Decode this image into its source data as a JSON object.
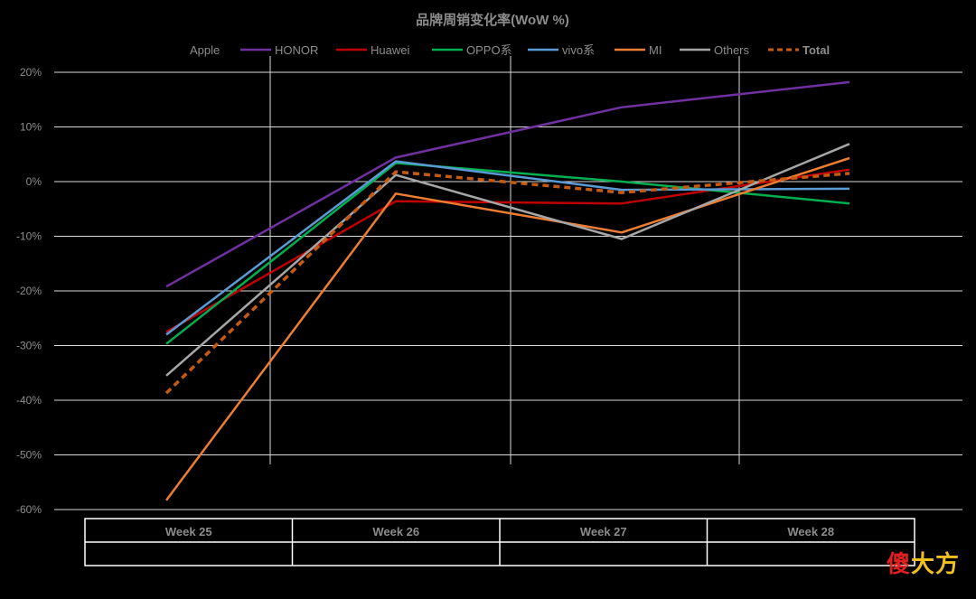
{
  "chart_data": {
    "type": "line",
    "title": "品牌周销变化率(WoW %)",
    "categories": [
      "Week 25",
      "Week 26",
      "Week 27",
      "Week 28"
    ],
    "y_unit": "%",
    "ylim": [
      -60,
      20
    ],
    "yticks": [
      20,
      10,
      0,
      -10,
      -20,
      -30,
      -40,
      -50,
      -60
    ],
    "ytick_labels": [
      "20%",
      "10%",
      "0%",
      "-10%",
      "-20%",
      "-30%",
      "-40%",
      "-50%",
      "-60%"
    ],
    "grid": true,
    "legend_position": "top",
    "series": [
      {
        "name": "Apple",
        "values": [
          null,
          null,
          null,
          null
        ],
        "color": "#000000",
        "dashed": false
      },
      {
        "name": "HONOR",
        "values": [
          -19.2,
          4.4,
          13.6,
          18.2
        ],
        "color": "#7030a0",
        "dashed": false
      },
      {
        "name": "Huawei",
        "values": [
          -27.5,
          -3.6,
          -4.0,
          2.2
        ],
        "color": "#c00000",
        "dashed": false
      },
      {
        "name": "OPPO系",
        "values": [
          -29.7,
          3.4,
          0.0,
          -4.0
        ],
        "color": "#00b050",
        "dashed": false
      },
      {
        "name": "vivo系",
        "values": [
          -28.0,
          3.7,
          -1.5,
          -1.3
        ],
        "color": "#5b9bd5",
        "dashed": false
      },
      {
        "name": "MI",
        "values": [
          -58.3,
          -2.2,
          -9.3,
          4.3
        ],
        "color": "#ed7d31",
        "dashed": false
      },
      {
        "name": "Others",
        "values": [
          -35.5,
          1.2,
          -10.5,
          6.9
        ],
        "color": "#a6a6a6",
        "dashed": false
      },
      {
        "name": "Total",
        "values": [
          -38.7,
          1.8,
          -2.0,
          1.5
        ],
        "color": "#c55a11",
        "dashed": true
      }
    ]
  },
  "watermark": {
    "part1": "傻",
    "part2": "大方"
  }
}
